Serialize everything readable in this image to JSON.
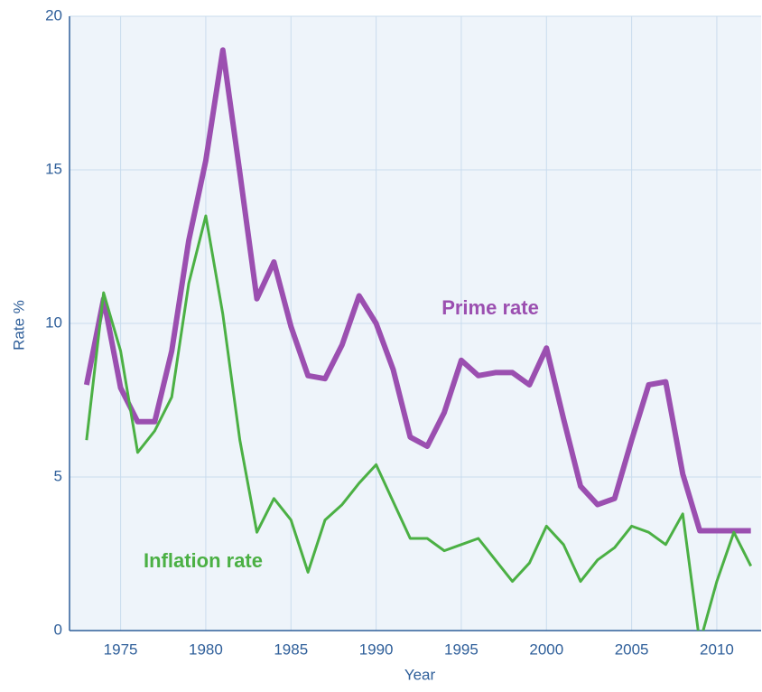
{
  "chart_data": {
    "type": "line",
    "x_label": "Year",
    "y_label": "Rate %",
    "x": [
      1973,
      1974,
      1975,
      1976,
      1977,
      1978,
      1979,
      1980,
      1981,
      1982,
      1983,
      1984,
      1985,
      1986,
      1987,
      1988,
      1989,
      1990,
      1991,
      1992,
      1993,
      1994,
      1995,
      1996,
      1997,
      1998,
      1999,
      2000,
      2001,
      2002,
      2003,
      2004,
      2005,
      2006,
      2007,
      2008,
      2009,
      2010,
      2011,
      2012
    ],
    "series": [
      {
        "name": "Prime rate",
        "color": "#9b4fb0",
        "values": [
          8.0,
          10.8,
          7.9,
          6.8,
          6.8,
          9.1,
          12.7,
          15.3,
          18.9,
          14.9,
          10.8,
          12.0,
          9.9,
          8.3,
          8.2,
          9.3,
          10.9,
          10.0,
          8.5,
          6.3,
          6.0,
          7.1,
          8.8,
          8.3,
          8.4,
          8.4,
          8.0,
          9.2,
          6.9,
          4.7,
          4.1,
          4.3,
          6.2,
          8.0,
          8.1,
          5.1,
          3.25,
          3.25,
          3.25,
          3.25
        ]
      },
      {
        "name": "Inflation rate",
        "color": "#4bb044",
        "values": [
          6.2,
          11.0,
          9.1,
          5.8,
          6.5,
          7.6,
          11.3,
          13.5,
          10.3,
          6.2,
          3.2,
          4.3,
          3.6,
          1.9,
          3.6,
          4.1,
          4.8,
          5.4,
          4.2,
          3.0,
          3.0,
          2.6,
          2.8,
          3.0,
          2.3,
          1.6,
          2.2,
          3.4,
          2.8,
          1.6,
          2.3,
          2.7,
          3.4,
          3.2,
          2.8,
          3.8,
          -0.4,
          1.6,
          3.2,
          2.1
        ]
      }
    ],
    "xlim": [
      1972,
      2012.6
    ],
    "xticks": [
      1975,
      1980,
      1985,
      1990,
      1995,
      2000,
      2005,
      2010
    ],
    "ylim": [
      0,
      20
    ],
    "yticks": [
      0,
      5,
      10,
      15,
      20
    ],
    "grid": true
  }
}
